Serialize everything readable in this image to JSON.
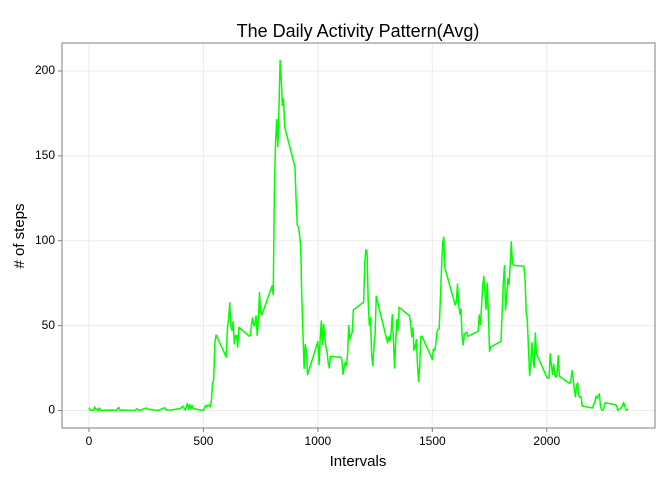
{
  "chart_data": {
    "type": "line",
    "title": "The Daily Activity Pattern(Avg)",
    "x_label": "Intervals",
    "y_label": "# of steps",
    "xlim": [
      -117.75,
      2472.75
    ],
    "ylim": [
      -10.3,
      216.5
    ],
    "xticks": [
      0,
      500,
      1000,
      1500,
      2000
    ],
    "yticks": [
      0,
      50,
      100,
      150,
      200
    ],
    "grid": true,
    "x": [
      0,
      5,
      10,
      15,
      20,
      25,
      30,
      35,
      40,
      45,
      50,
      55,
      100,
      110,
      120,
      125,
      130,
      135,
      150,
      200,
      210,
      220,
      250,
      255,
      300,
      330,
      335,
      345,
      400,
      410,
      420,
      430,
      435,
      440,
      445,
      450,
      455,
      500,
      505,
      510,
      515,
      520,
      525,
      530,
      535,
      540,
      545,
      550,
      555,
      600,
      605,
      610,
      615,
      620,
      625,
      630,
      635,
      640,
      645,
      650,
      655,
      700,
      705,
      710,
      715,
      720,
      725,
      730,
      735,
      740,
      745,
      750,
      755,
      800,
      805,
      810,
      815,
      820,
      825,
      830,
      835,
      840,
      845,
      850,
      855,
      900,
      905,
      910,
      915,
      920,
      925,
      930,
      935,
      940,
      945,
      950,
      955,
      1000,
      1005,
      1010,
      1015,
      1020,
      1025,
      1030,
      1035,
      1040,
      1045,
      1050,
      1055,
      1100,
      1105,
      1110,
      1115,
      1120,
      1125,
      1130,
      1135,
      1140,
      1145,
      1150,
      1155,
      1200,
      1205,
      1210,
      1215,
      1220,
      1225,
      1230,
      1235,
      1240,
      1245,
      1250,
      1255,
      1300,
      1305,
      1310,
      1315,
      1320,
      1325,
      1330,
      1335,
      1340,
      1345,
      1350,
      1355,
      1400,
      1405,
      1410,
      1415,
      1420,
      1425,
      1430,
      1435,
      1440,
      1445,
      1450,
      1455,
      1500,
      1505,
      1510,
      1515,
      1520,
      1525,
      1530,
      1535,
      1540,
      1545,
      1550,
      1555,
      1600,
      1605,
      1610,
      1615,
      1620,
      1625,
      1630,
      1635,
      1640,
      1645,
      1650,
      1655,
      1700,
      1705,
      1710,
      1715,
      1720,
      1725,
      1730,
      1735,
      1740,
      1745,
      1750,
      1755,
      1800,
      1805,
      1810,
      1815,
      1820,
      1825,
      1830,
      1835,
      1840,
      1845,
      1850,
      1855,
      1900,
      1905,
      1910,
      1915,
      1920,
      1925,
      1930,
      1935,
      1940,
      1945,
      1950,
      1955,
      2000,
      2005,
      2010,
      2015,
      2020,
      2025,
      2030,
      2035,
      2040,
      2045,
      2050,
      2055,
      2100,
      2105,
      2110,
      2115,
      2120,
      2125,
      2130,
      2135,
      2140,
      2145,
      2150,
      2155,
      2200,
      2205,
      2210,
      2215,
      2220,
      2225,
      2230,
      2235,
      2240,
      2245,
      2250,
      2255,
      2300,
      2305,
      2310,
      2315,
      2320,
      2325,
      2330,
      2335,
      2340,
      2345,
      2350,
      2355
    ],
    "series": [
      {
        "name": "steps",
        "color": "#00ff00",
        "values": [
          1.7,
          0.3,
          0.1,
          0.2,
          0.1,
          2.1,
          0.5,
          0.9,
          0,
          1.5,
          0.3,
          0.1,
          0.3,
          0.2,
          0,
          1.1,
          1.8,
          0.2,
          0.3,
          0,
          1.1,
          0,
          1.5,
          0.9,
          0,
          1.6,
          0.6,
          0.1,
          1.2,
          2.6,
          0.3,
          4.1,
          0.7,
          3.5,
          0.8,
          3.1,
          1.1,
          0,
          1.6,
          3.0,
          2.2,
          3.3,
          3.0,
          2.1,
          6.1,
          16.0,
          18.3,
          39.5,
          44.5,
          31.5,
          49.3,
          53.8,
          63.5,
          50.0,
          47.1,
          52.2,
          39.3,
          44.0,
          44.2,
          37.4,
          49.0,
          43.8,
          44.4,
          50.5,
          54.5,
          49.9,
          51.0,
          55.7,
          44.3,
          52.3,
          69.5,
          57.8,
          56.2,
          73.4,
          68.2,
          129.4,
          157.5,
          171.2,
          155.4,
          177.3,
          206.2,
          195.9,
          179.6,
          183.4,
          167.0,
          143.5,
          124.0,
          109.1,
          108.1,
          103.7,
          95.9,
          66.2,
          45.2,
          24.8,
          38.8,
          34.98,
          21.1,
          40.6,
          27.0,
          42.4,
          52.7,
          38.9,
          50.8,
          44.3,
          37.4,
          34.7,
          28.3,
          25.1,
          31.9,
          31.4,
          29.7,
          21.3,
          25.5,
          28.4,
          26.5,
          33.4,
          50.0,
          42.0,
          44.6,
          46.0,
          59.2,
          63.9,
          87.7,
          94.8,
          92.8,
          63.4,
          50.2,
          54.5,
          32.4,
          26.5,
          37.7,
          45.1,
          67.3,
          42.3,
          39.9,
          43.3,
          40.98,
          46.2,
          56.4,
          42.8,
          25.1,
          39.96,
          53.5,
          47.3,
          60.8,
          55.8,
          51.96,
          43.6,
          48.7,
          35.5,
          37.5,
          41.8,
          27.5,
          17.1,
          26.1,
          43.6,
          43.8,
          30.0,
          36.1,
          35.5,
          38.8,
          46.0,
          47.75,
          48.1,
          65.3,
          82.9,
          98.7,
          102.1,
          83.96,
          62.1,
          64.1,
          74.5,
          63.2,
          56.9,
          59.8,
          43.9,
          38.6,
          44.7,
          45.5,
          46.2,
          43.7,
          46.6,
          56.3,
          50.7,
          61.2,
          73.4,
          79.0,
          68.9,
          59.7,
          75.1,
          56.5,
          34.8,
          37.5,
          40.7,
          58.0,
          74.7,
          85.3,
          59.3,
          67.8,
          77.7,
          74.2,
          85.3,
          99.5,
          86.6,
          85.6,
          84.9,
          77.8,
          58.0,
          53.4,
          36.3,
          20.7,
          27.4,
          40.0,
          30.2,
          25.5,
          45.7,
          33.5,
          19.6,
          19.0,
          19.3,
          33.3,
          26.8,
          21.2,
          27.3,
          21.3,
          19.5,
          21.3,
          32.3,
          20.2,
          15.9,
          17.2,
          23.5,
          19.2,
          12.5,
          8.0,
          14.7,
          16.3,
          8.7,
          7.8,
          8.1,
          2.6,
          1.5,
          3.7,
          4.8,
          8.5,
          7.1,
          8.7,
          9.8,
          2.2,
          0.3,
          0.1,
          1.6,
          4.6,
          3.3,
          2.8,
          0,
          0.8,
          0.96,
          1.6,
          2.6,
          4.7,
          3.3,
          0.6,
          0.2,
          1.1
        ]
      }
    ]
  }
}
